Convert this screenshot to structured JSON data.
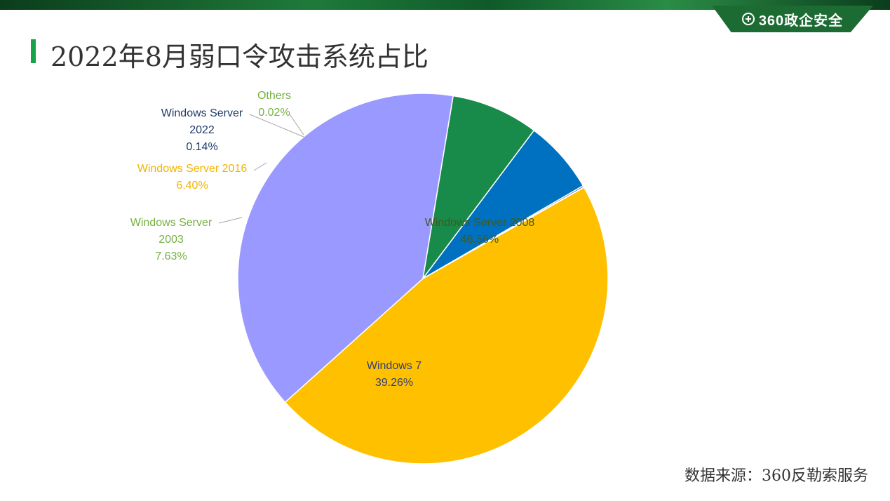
{
  "header": {
    "brand": "360政企安全",
    "title": "2022年8月弱口令攻击系统占比"
  },
  "footer": {
    "source": "数据来源：360反勒索服务"
  },
  "chart_data": {
    "type": "pie",
    "title": "2022年8月弱口令攻击系统占比",
    "slices": [
      {
        "lines": [
          "Windows Server 2008"
        ],
        "value": 46.56,
        "value_label": "46.56%",
        "color": "#FFC000",
        "label_color": "#3f5b1f"
      },
      {
        "lines": [
          "Windows 7"
        ],
        "value": 39.26,
        "value_label": "39.26%",
        "color": "#9999FF",
        "label_color": "#2f3f7a"
      },
      {
        "lines": [
          "Windows Server",
          "2003"
        ],
        "value": 7.63,
        "value_label": "7.63%",
        "color": "#188A4A",
        "label_color": "#76b043"
      },
      {
        "lines": [
          "Windows Server 2016"
        ],
        "value": 6.4,
        "value_label": "6.40%",
        "color": "#0070C0",
        "label_color": "#f2b400"
      },
      {
        "lines": [
          "Windows Server",
          "2022"
        ],
        "value": 0.14,
        "value_label": "0.14%",
        "color": "#1f3b6b",
        "label_color": "#1f3b6b"
      },
      {
        "lines": [
          "Others"
        ],
        "value": 0.02,
        "value_label": "0.02%",
        "color": "#8fc45a",
        "label_color": "#76b043"
      }
    ]
  }
}
